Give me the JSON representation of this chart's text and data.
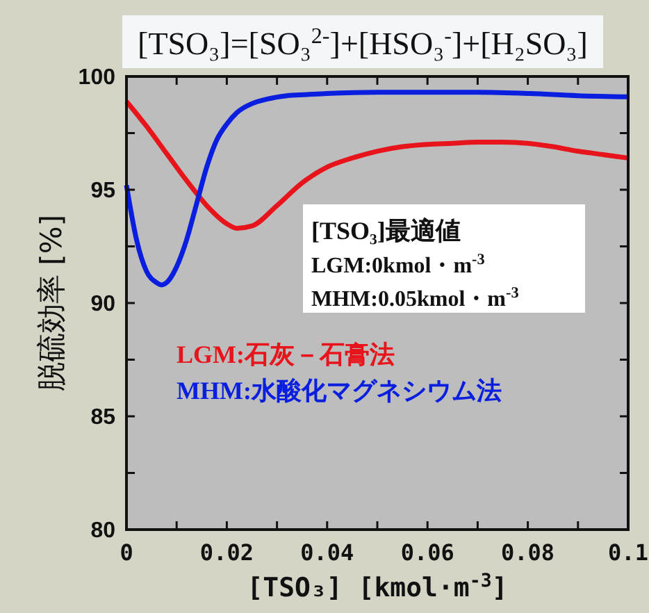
{
  "chart_data": {
    "type": "line",
    "title": "[TSO₃]=[SO₃$^{2-}$]+[HSO₃$^{-}$]+[H₂SO₃]",
    "xlabel": "[TSO₃] [kmol·m$^{-3}$]",
    "ylabel": "脱硫効率 [%]",
    "xlim": [
      0,
      0.1
    ],
    "ylim": [
      80,
      100
    ],
    "xticks": [
      0,
      {
        "value": 0.01,
        "label": null
      },
      {
        "value": 0.02,
        "label": "0.02"
      },
      {
        "value": 0.03,
        "label": null
      },
      {
        "value": 0.04,
        "label": "0.04"
      },
      {
        "value": 0.05,
        "label": null
      },
      {
        "value": 0.06,
        "label": "0.06"
      },
      {
        "value": 0.07,
        "label": null
      },
      {
        "value": 0.08,
        "label": "0.08"
      },
      {
        "value": 0.09,
        "label": null
      },
      {
        "value": 0.1,
        "label": "0.1"
      }
    ],
    "yticks": [
      80,
      {
        "value": 82.5,
        "label": null
      },
      85,
      {
        "value": 87.5,
        "label": null
      },
      90,
      {
        "value": 92.5,
        "label": null
      },
      95,
      {
        "value": 97.5,
        "label": null
      },
      100
    ],
    "grid": false,
    "legend": "left",
    "marker": "none",
    "line_style": "solid",
    "series": [
      {
        "name": "LGM:石灰－石膏法",
        "color": "#e8141c",
        "x": [
          0,
          0.004,
          0.008,
          0.012,
          0.016,
          0.02,
          0.022,
          0.025,
          0.03,
          0.035,
          0.04,
          0.045,
          0.05,
          0.055,
          0.06,
          0.065,
          0.07,
          0.075,
          0.08,
          0.085,
          0.09,
          0.095,
          0.1
        ],
        "values": [
          98.9,
          97.8,
          96.6,
          95.4,
          94.3,
          93.5,
          93.3,
          93.4,
          94.3,
          95.3,
          96.0,
          96.4,
          96.7,
          96.9,
          97.0,
          97.05,
          97.1,
          97.1,
          97.05,
          96.9,
          96.7,
          96.55,
          96.4
        ]
      },
      {
        "name": "MHM:水酸化マグネシウム法",
        "color": "#0a1ee0",
        "x": [
          0,
          0.002,
          0.004,
          0.006,
          0.007,
          0.008,
          0.01,
          0.012,
          0.014,
          0.016,
          0.018,
          0.02,
          0.022,
          0.025,
          0.028,
          0.032,
          0.036,
          0.04,
          0.05,
          0.06,
          0.07,
          0.08,
          0.09,
          0.1
        ],
        "values": [
          95.2,
          92.8,
          91.4,
          90.9,
          90.8,
          90.9,
          91.6,
          92.8,
          94.4,
          96.0,
          97.2,
          97.9,
          98.4,
          98.8,
          99.0,
          99.15,
          99.2,
          99.25,
          99.3,
          99.3,
          99.3,
          99.25,
          99.15,
          99.1
        ]
      }
    ],
    "annotations": [
      "[TSO₃]最適値",
      "LGM:0kmol・m$^{-3}$",
      "MHM:0.05kmol・m$^{-3}$"
    ]
  }
}
